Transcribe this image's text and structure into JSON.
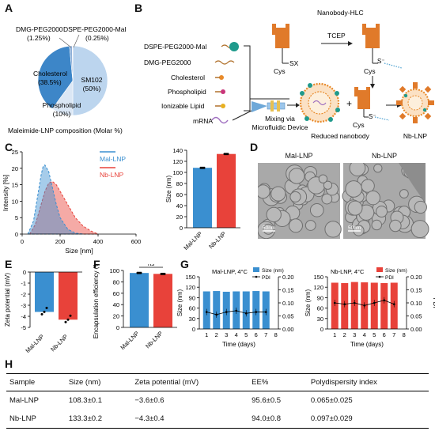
{
  "panels": {
    "A": "A",
    "B": "B",
    "C": "C",
    "D": "D",
    "E": "E",
    "F": "F",
    "G": "G",
    "H": "H"
  },
  "colors": {
    "mal": "#3a8fd0",
    "nb": "#e8423a",
    "pie_dark": "#3d86c8",
    "pie_light": "#bcd5ee",
    "pie_mid": "#dbe7f5"
  },
  "panel_a": {
    "caption": "Maleimide-LNP composition (Molar %)",
    "slices": [
      {
        "name": "SM102",
        "value": 50,
        "label": "SM102",
        "pct": "(50%)"
      },
      {
        "name": "Phospholipid",
        "value": 10,
        "label": "Phospholipid",
        "pct": "(10%)"
      },
      {
        "name": "Cholesterol",
        "value": 38.5,
        "label": "Cholesterol",
        "pct": "(38.5%)"
      },
      {
        "name": "DMG-PEG2000",
        "value": 1.25,
        "label": "DMG-PEG2000",
        "pct": "(1.25%)"
      },
      {
        "name": "DSPE-PEG2000-Mal",
        "value": 0.25,
        "label": "DSPE-PEG2000-Mal",
        "pct": "(0.25%)"
      }
    ]
  },
  "panel_b": {
    "legend": [
      "DSPE-PEG2000-Mal",
      "DMG-PEG2000",
      "Cholesterol",
      "Phospholipid",
      "Ionizable Lipid",
      "mRNA"
    ],
    "nanobody_hlc": "Nanobody-HLC",
    "tcep": "TCEP",
    "cys": "Cys",
    "sx": "SX",
    "s_minus": "S⁻",
    "mixing": "Mixing via\nMicrofluidic Device",
    "reduced": "Reduced nanobody",
    "nb_lnp": "Nb-LNP"
  },
  "chart_data": [
    {
      "id": "C-left",
      "type": "area",
      "xlabel": "Size [nm]",
      "ylabel": "Intensity [%]",
      "xlim": [
        0,
        600
      ],
      "ylim": [
        0,
        25
      ],
      "xticks": [
        0,
        200,
        400,
        600
      ],
      "yticks": [
        0,
        5,
        10,
        15,
        20,
        25
      ],
      "series": [
        {
          "name": "Mal-LNP",
          "x": [
            30,
            60,
            80,
            100,
            110,
            120,
            140,
            160,
            180,
            200,
            240,
            280,
            320
          ],
          "y": [
            0,
            4,
            11,
            18,
            20.5,
            21,
            19,
            14,
            9,
            5,
            1.5,
            0.3,
            0
          ]
        },
        {
          "name": "Nb-LNP",
          "x": [
            40,
            70,
            100,
            120,
            140,
            160,
            180,
            200,
            240,
            280,
            320,
            360,
            400
          ],
          "y": [
            0,
            3,
            9,
            13,
            15.5,
            16,
            15,
            13,
            9,
            5,
            2.5,
            1,
            0
          ]
        }
      ]
    },
    {
      "id": "C-right",
      "type": "bar",
      "ylabel": "Size (nm)",
      "ylim": [
        0,
        140
      ],
      "yticks": [
        0,
        20,
        40,
        60,
        80,
        100,
        120,
        140
      ],
      "categories": [
        "Mal-LNP",
        "Nb-LNP"
      ],
      "values": [
        108.3,
        133.3
      ]
    },
    {
      "id": "E",
      "type": "bar",
      "ylabel": "Zeta potential (mV)",
      "ylim": [
        -5,
        0
      ],
      "yticks": [
        0,
        -1,
        -2,
        -3,
        -4,
        -5
      ],
      "categories": [
        "Mal-LNP",
        "Nb-LNP"
      ],
      "values": [
        -3.6,
        -4.3
      ]
    },
    {
      "id": "F",
      "type": "bar",
      "ylabel": "Encapsulation efficiency (%)",
      "ylim": [
        0,
        100
      ],
      "yticks": [
        0,
        20,
        40,
        60,
        80,
        100
      ],
      "categories": [
        "Mal-LNP",
        "Nb-LNP"
      ],
      "values": [
        95.6,
        94.0
      ],
      "annotation": "ns"
    },
    {
      "id": "G-left",
      "type": "bar",
      "title": "Mal-LNP, 4°C",
      "xlabel": "Time (days)",
      "ylabel": "Size (nm)",
      "ylabel2": "PDI",
      "ylim": [
        0,
        150
      ],
      "yticks": [
        0,
        30,
        60,
        90,
        120,
        150
      ],
      "y2lim": [
        0,
        0.2
      ],
      "y2ticks": [
        "0.00",
        "0.05",
        "0.10",
        "0.15",
        "0.20"
      ],
      "categories": [
        "1",
        "2",
        "3",
        "4",
        "5",
        "6",
        "7"
      ],
      "xticks": [
        "1",
        "2",
        "3",
        "4",
        "5",
        "6",
        "7",
        "8"
      ],
      "series": [
        {
          "name": "Size (nm)",
          "values": [
            108,
            109,
            107,
            108,
            108,
            109,
            108
          ]
        },
        {
          "name": "PDI",
          "values": [
            0.065,
            0.055,
            0.065,
            0.07,
            0.06,
            0.065,
            0.065
          ]
        }
      ]
    },
    {
      "id": "G-right",
      "type": "bar",
      "title": "Nb-LNP, 4°C",
      "xlabel": "Time (days)",
      "ylabel": "Size (nm)",
      "ylabel2": "PDI",
      "ylim": [
        0,
        150
      ],
      "yticks": [
        0,
        30,
        60,
        90,
        120,
        150
      ],
      "y2lim": [
        0,
        0.2
      ],
      "y2ticks": [
        "0.00",
        "0.05",
        "0.10",
        "0.15",
        "0.20"
      ],
      "categories": [
        "1",
        "2",
        "3",
        "4",
        "5",
        "6",
        "7"
      ],
      "xticks": [
        "1",
        "2",
        "3",
        "4",
        "5",
        "6",
        "7",
        "8"
      ],
      "series": [
        {
          "name": "Size (nm)",
          "values": [
            133,
            132,
            135,
            134,
            133,
            132,
            133
          ]
        },
        {
          "name": "PDI",
          "values": [
            0.1,
            0.095,
            0.1,
            0.09,
            0.1,
            0.11,
            0.095
          ]
        }
      ]
    }
  ],
  "panel_d": {
    "left_title": "Mal-LNP",
    "right_title": "Nb-LNP",
    "scale": "50nm"
  },
  "table": {
    "headers": [
      "Sample",
      "Size (nm)",
      "Zeta potential (mV)",
      "EE%",
      "Polydispersity index"
    ],
    "rows": [
      [
        "Mal-LNP",
        "108.3±0.1",
        "−3.6±0.6",
        "95.6±0.5",
        "0.065±0.025"
      ],
      [
        "Nb-LNP",
        "133.3±0.2",
        "−4.3±0.4",
        "94.0±0.8",
        "0.097±0.029"
      ]
    ]
  }
}
